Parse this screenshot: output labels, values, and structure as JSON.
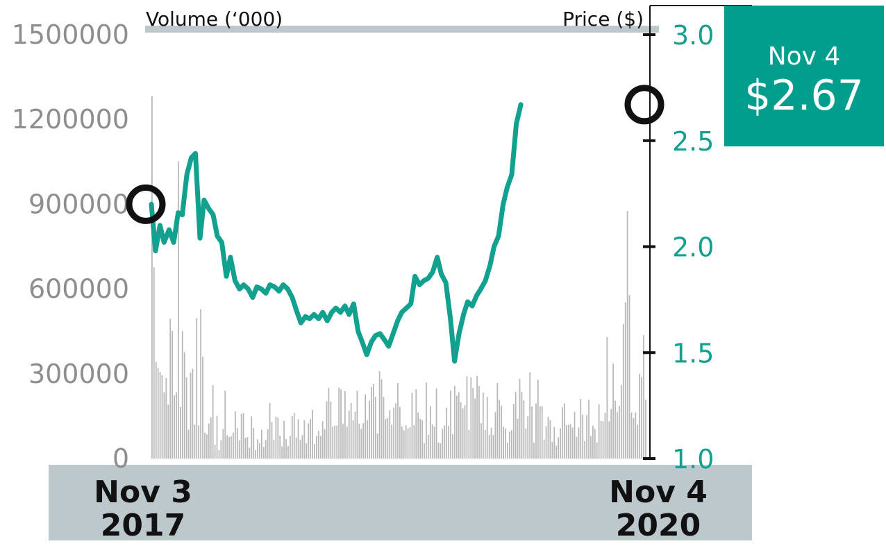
{
  "colors": {
    "price_line": "#12a08f",
    "volume_bar": "#b7b7b7",
    "band": "#bdc8cc",
    "axis": "#111111",
    "left_tick_text": "#8e8e8e",
    "right_tick_text": "#12a08f",
    "callout_bg": "#009e8c"
  },
  "callout": {
    "date": "Nov 4",
    "price": "$2.67"
  },
  "chart_data": {
    "type": "bar+line",
    "title": "",
    "left_axis": {
      "label": "Volume (‘000)",
      "ticks": [
        "1500000",
        "1200000",
        "900000",
        "600000",
        "300000",
        "0"
      ],
      "range": [
        0,
        1500000
      ]
    },
    "right_axis": {
      "label": "Price ($)",
      "ticks": [
        "3.0",
        "2.5",
        "2.0",
        "1.5",
        "1.0"
      ],
      "range": [
        1.0,
        3.0
      ]
    },
    "x_labels": [
      {
        "month_day": "Nov 3",
        "year": "2017"
      },
      {
        "month_day": "Nov 4",
        "year": "2020"
      }
    ],
    "x_range": [
      "2017-11-03",
      "2020-11-04"
    ],
    "markers": [
      {
        "date": "2017-11-03",
        "price": 2.2
      },
      {
        "date": "2020-11-04",
        "price": 2.67
      }
    ],
    "series": [
      {
        "kind": "line",
        "axis": "right",
        "values": [
          [
            "2017-11-03",
            2.2
          ],
          [
            "2017-11-12",
            1.98
          ],
          [
            "2017-11-22",
            2.1
          ],
          [
            "2017-12-01",
            2.02
          ],
          [
            "2017-12-12",
            2.08
          ],
          [
            "2017-12-22",
            2.02
          ],
          [
            "2018-01-01",
            2.16
          ],
          [
            "2018-01-10",
            2.15
          ],
          [
            "2018-01-20",
            2.34
          ],
          [
            "2018-01-30",
            2.42
          ],
          [
            "2018-02-08",
            2.44
          ],
          [
            "2018-02-18",
            2.04
          ],
          [
            "2018-02-27",
            2.22
          ],
          [
            "2018-03-09",
            2.18
          ],
          [
            "2018-03-19",
            2.15
          ],
          [
            "2018-03-28",
            2.05
          ],
          [
            "2018-04-07",
            2.02
          ],
          [
            "2018-04-17",
            1.86
          ],
          [
            "2018-04-26",
            1.95
          ],
          [
            "2018-05-06",
            1.84
          ],
          [
            "2018-05-16",
            1.8
          ],
          [
            "2018-05-25",
            1.82
          ],
          [
            "2018-06-04",
            1.8
          ],
          [
            "2018-06-14",
            1.76
          ],
          [
            "2018-06-23",
            1.81
          ],
          [
            "2018-07-03",
            1.8
          ],
          [
            "2018-07-13",
            1.78
          ],
          [
            "2018-07-22",
            1.82
          ],
          [
            "2018-08-01",
            1.81
          ],
          [
            "2018-08-11",
            1.79
          ],
          [
            "2018-08-20",
            1.82
          ],
          [
            "2018-08-30",
            1.8
          ],
          [
            "2018-09-09",
            1.76
          ],
          [
            "2018-09-18",
            1.7
          ],
          [
            "2018-09-28",
            1.64
          ],
          [
            "2018-10-08",
            1.67
          ],
          [
            "2018-10-17",
            1.66
          ],
          [
            "2018-10-27",
            1.68
          ],
          [
            "2018-11-06",
            1.66
          ],
          [
            "2018-11-15",
            1.69
          ],
          [
            "2018-11-25",
            1.65
          ],
          [
            "2018-12-05",
            1.69
          ],
          [
            "2018-12-14",
            1.71
          ],
          [
            "2018-12-24",
            1.69
          ],
          [
            "2019-01-03",
            1.72
          ],
          [
            "2019-01-12",
            1.68
          ],
          [
            "2019-01-22",
            1.73
          ],
          [
            "2019-02-01",
            1.6
          ],
          [
            "2019-02-10",
            1.55
          ],
          [
            "2019-02-20",
            1.49
          ],
          [
            "2019-03-02",
            1.55
          ],
          [
            "2019-03-11",
            1.58
          ],
          [
            "2019-03-21",
            1.59
          ],
          [
            "2019-03-31",
            1.56
          ],
          [
            "2019-04-09",
            1.53
          ],
          [
            "2019-04-19",
            1.59
          ],
          [
            "2019-04-29",
            1.65
          ],
          [
            "2019-05-08",
            1.69
          ],
          [
            "2019-05-18",
            1.71
          ],
          [
            "2019-05-28",
            1.73
          ],
          [
            "2019-06-06",
            1.86
          ],
          [
            "2019-06-16",
            1.82
          ],
          [
            "2019-06-26",
            1.84
          ],
          [
            "2019-07-05",
            1.85
          ],
          [
            "2019-07-15",
            1.88
          ],
          [
            "2019-07-25",
            1.95
          ],
          [
            "2019-08-03",
            1.87
          ],
          [
            "2019-08-13",
            1.83
          ],
          [
            "2019-08-23",
            1.66
          ],
          [
            "2019-09-01",
            1.46
          ],
          [
            "2019-09-11",
            1.59
          ],
          [
            "2019-09-21",
            1.68
          ],
          [
            "2019-09-30",
            1.74
          ],
          [
            "2019-10-10",
            1.72
          ],
          [
            "2019-10-20",
            1.77
          ],
          [
            "2019-10-29",
            1.8
          ],
          [
            "2019-11-08",
            1.84
          ],
          [
            "2019-11-18",
            1.91
          ],
          [
            "2019-11-27",
            2.0
          ],
          [
            "2019-12-07",
            2.05
          ],
          [
            "2019-12-17",
            2.2
          ],
          [
            "2019-12-26",
            2.28
          ],
          [
            "2020-01-05",
            2.34
          ],
          [
            "2020-01-15",
            2.58
          ],
          [
            "2020-01-25",
            2.67
          ]
        ]
      },
      {
        "kind": "bar",
        "axis": "left",
        "values": [
          1283000,
          677000,
          342000,
          320000,
          306000,
          295000,
          235000,
          285000,
          191000,
          495000,
          452000,
          224000,
          235000,
          1052000,
          183000,
          451000,
          377000,
          287000,
          102000,
          304000,
          318000,
          120000,
          496000,
          117000,
          528000,
          360000,
          92000,
          86000,
          124000,
          146000,
          260000,
          49000,
          151000,
          30000,
          65000,
          105000,
          240000,
          83000,
          76000,
          79000,
          92000,
          167000,
          107000,
          65000,
          158000,
          161000,
          73000,
          76000,
          38000,
          149000,
          108000,
          30000,
          68000,
          55000,
          102000,
          41000,
          66000,
          104000,
          197000,
          130000,
          66000,
          148000,
          145000,
          81000,
          43000,
          134000,
          69000,
          44000,
          80000,
          150000,
          161000,
          74000,
          139000,
          66000,
          83000,
          136000,
          54000,
          125000,
          140000,
          172000,
          52000,
          80000,
          98000,
          80000,
          132000,
          104000,
          203000,
          250000,
          202000,
          113000,
          116000,
          117000,
          251000,
          245000,
          123000,
          239000,
          113000,
          170000,
          197000,
          136000,
          166000,
          240000,
          123000,
          105000,
          125000,
          227000,
          136000,
          205000,
          253000,
          264000,
          218000,
          89000,
          309000,
          280000,
          218000,
          140000,
          144000,
          171000,
          120000,
          180000,
          196000,
          267000,
          182000,
          114000,
          100000,
          118000,
          106000,
          111000,
          233000,
          118000,
          245000,
          163000,
          140000,
          136000,
          54000,
          269000,
          84000,
          186000,
          120000,
          113000,
          248000,
          57000,
          54000,
          105000,
          117000,
          180000,
          116000,
          240000,
          86000,
          257000,
          223000,
          235000,
          199000,
          178000,
          188000,
          291000,
          101000,
          287000,
          250000,
          212000,
          292000,
          257000,
          125000,
          233000,
          102000,
          218000,
          84000,
          109000,
          84000,
          165000,
          268000,
          208000,
          187000,
          113000,
          106000,
          56000,
          95000,
          101000,
          193000,
          236000,
          141000,
          282000,
          236000,
          206000,
          106000,
          150000,
          305000,
          184000,
          56000,
          195000,
          279000,
          185000,
          185000,
          67000,
          114000,
          148000,
          136000,
          59000,
          112000,
          46000,
          75000,
          107000,
          182000,
          195000,
          118000,
          120000,
          122000,
          109000,
          165000,
          77000,
          110000,
          211000,
          156000,
          62000,
          153000,
          208000,
          80000,
          116000,
          105000,
          57000,
          192000,
          133000,
          132000,
          162000,
          430000,
          132000,
          175000,
          336000,
          205000,
          165000,
          187000,
          261000,
          476000,
          553000,
          876000,
          578000,
          163000,
          144000,
          163000,
          120000,
          300000,
          288000,
          437000,
          208000
        ]
      }
    ]
  }
}
